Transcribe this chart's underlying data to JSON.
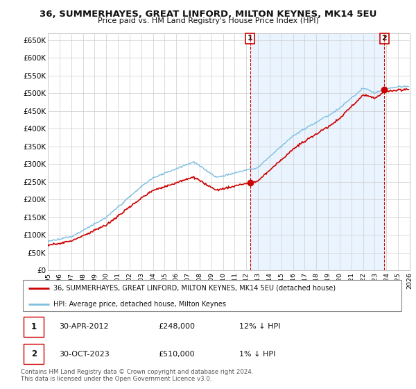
{
  "title": "36, SUMMERHAYES, GREAT LINFORD, MILTON KEYNES, MK14 5EU",
  "subtitle": "Price paid vs. HM Land Registry's House Price Index (HPI)",
  "ylabel_vals": [
    "£0",
    "£50K",
    "£100K",
    "£150K",
    "£200K",
    "£250K",
    "£300K",
    "£350K",
    "£400K",
    "£450K",
    "£500K",
    "£550K",
    "£600K",
    "£650K"
  ],
  "ylim": [
    0,
    670000
  ],
  "yticks": [
    0,
    50000,
    100000,
    150000,
    200000,
    250000,
    300000,
    350000,
    400000,
    450000,
    500000,
    550000,
    600000,
    650000
  ],
  "x_start_year": 1995,
  "x_end_year": 2026,
  "marker1_date": 2012.33,
  "marker1_label": "1",
  "marker1_value": 248000,
  "marker2_date": 2023.83,
  "marker2_label": "2",
  "marker2_value": 510000,
  "legend_line1": "36, SUMMERHAYES, GREAT LINFORD, MILTON KEYNES, MK14 5EU (detached house)",
  "legend_line2": "HPI: Average price, detached house, Milton Keynes",
  "table_row1_num": "1",
  "table_row1_date": "30-APR-2012",
  "table_row1_price": "£248,000",
  "table_row1_hpi": "12% ↓ HPI",
  "table_row2_num": "2",
  "table_row2_date": "30-OCT-2023",
  "table_row2_price": "£510,000",
  "table_row2_hpi": "1% ↓ HPI",
  "footer": "Contains HM Land Registry data © Crown copyright and database right 2024.\nThis data is licensed under the Open Government Licence v3.0.",
  "hpi_color": "#7fbfdf",
  "price_color": "#cc0000",
  "vline_color": "#cc0000",
  "grid_color": "#cccccc",
  "shade_color": "#ddeeff",
  "bg_color": "#ffffff"
}
